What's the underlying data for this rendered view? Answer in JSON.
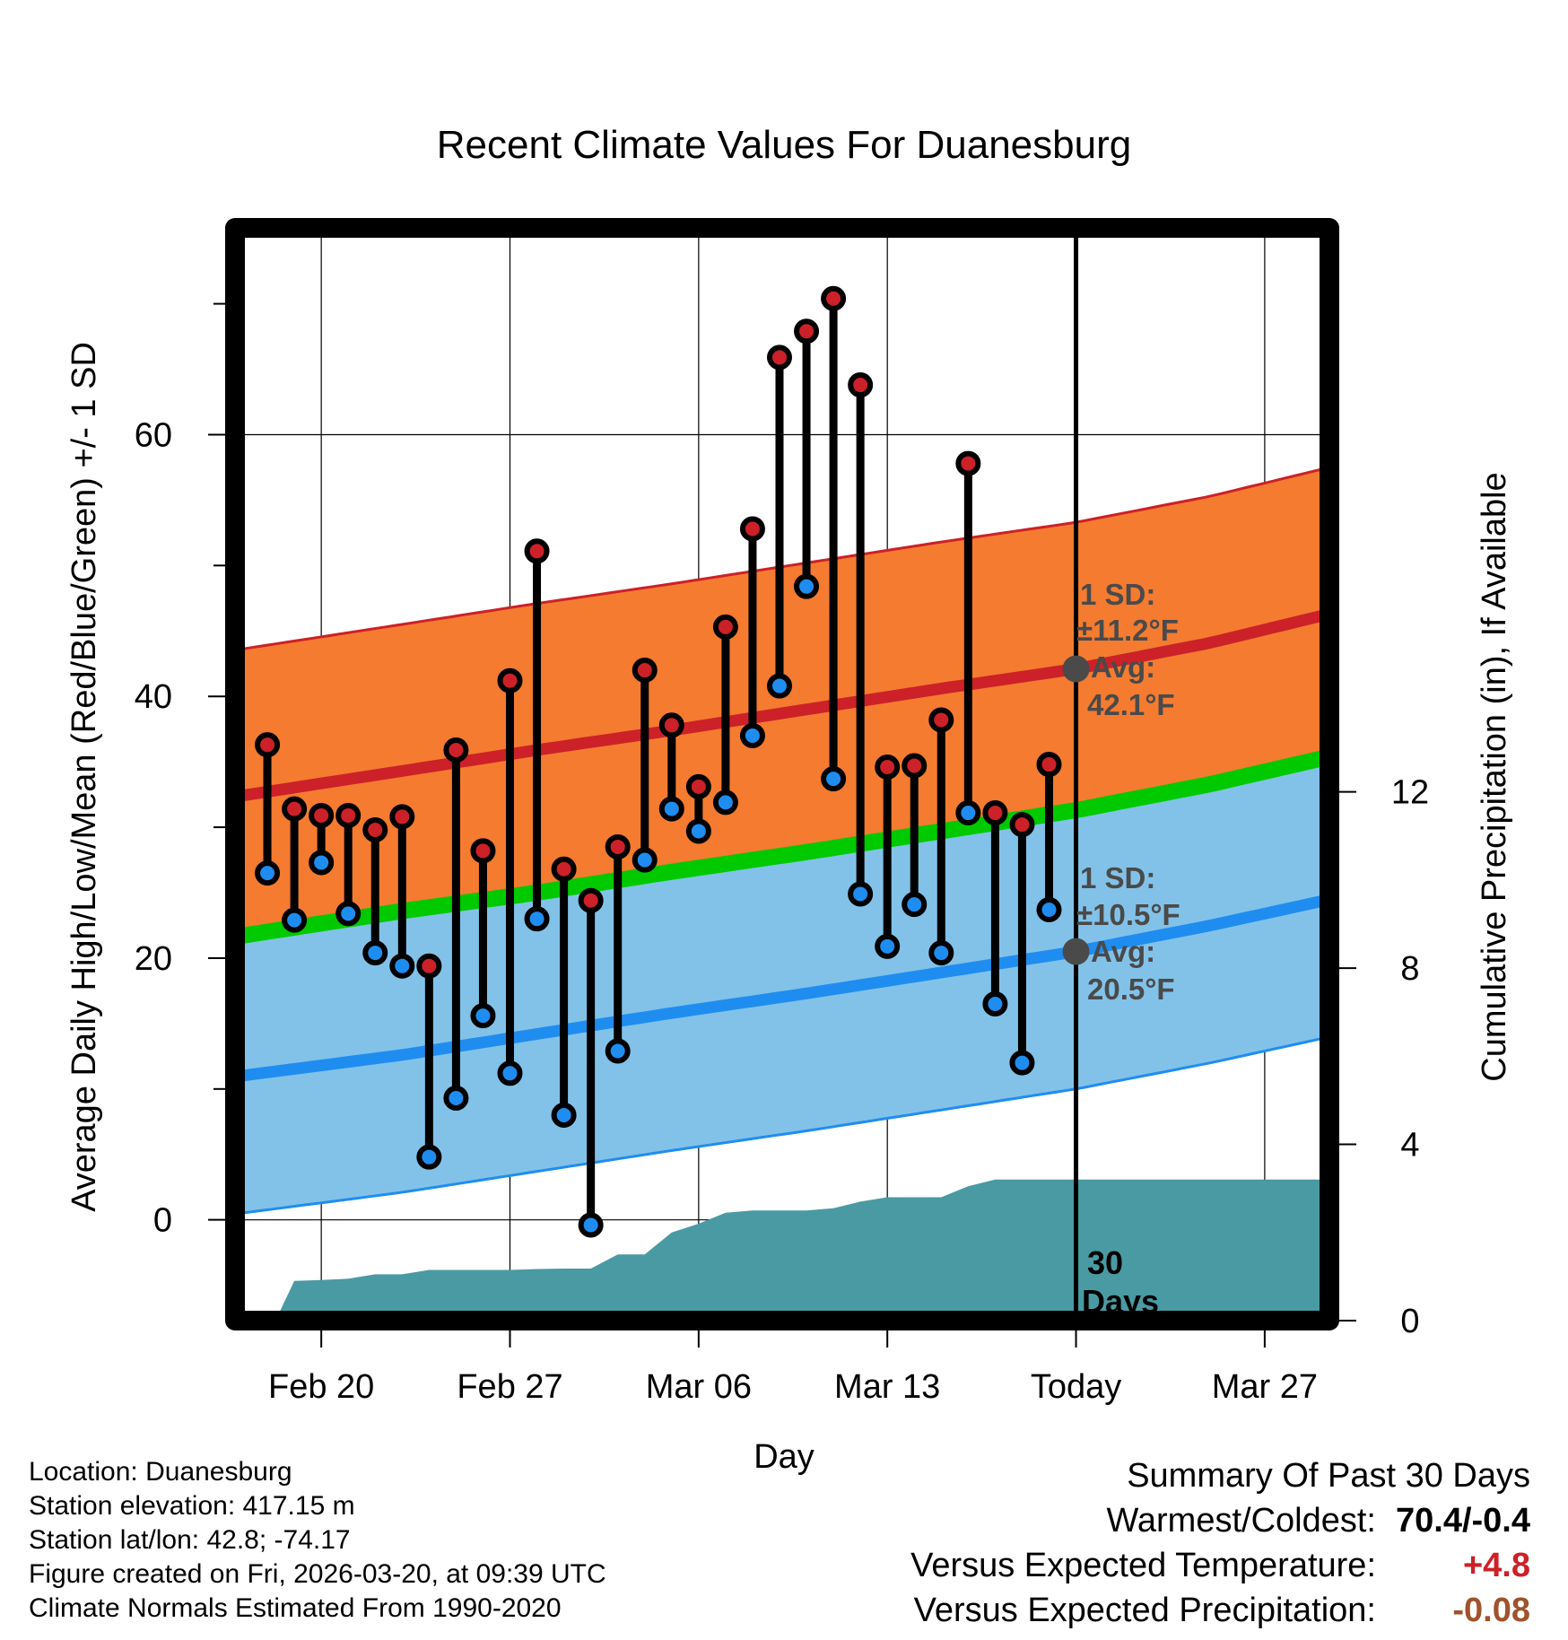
{
  "colors": {
    "high_band": "#f47b30",
    "high_line": "#cc2128",
    "low_band": "#82c2e9",
    "low_line": "#1f8df0",
    "mean_line": "#00c900",
    "precip": "#4a9aa3",
    "high_marker": "#cc2128",
    "low_marker": "#1f8df0",
    "warm_value": "#cc2128",
    "precip_value": "#a0522d",
    "annot": "#4a4a4a"
  },
  "chart_data": {
    "type": "line",
    "title": "Recent Climate Values For Duanesburg",
    "xlabel": "Day",
    "ylabel": "Average Daily High/Low/Mean (Red/Blue/Green) +/- 1 SD",
    "y2label": "Cumulative Precipitation (in), If Available",
    "x_ticks": [
      {
        "day": 2,
        "label": "Feb 20"
      },
      {
        "day": 9,
        "label": "Feb 27"
      },
      {
        "day": 16,
        "label": "Mar 06"
      },
      {
        "day": 23,
        "label": "Mar 13"
      },
      {
        "day": 30,
        "label": "Today"
      },
      {
        "day": 37,
        "label": "Mar 27"
      }
    ],
    "xlim": [
      -1.2,
      39.4
    ],
    "ylim": [
      -7.7,
      75.8
    ],
    "y_ticks": [
      0,
      20,
      40,
      60
    ],
    "y2lim": [
      0,
      24.8
    ],
    "y2_ticks": [
      0,
      4,
      8,
      12
    ],
    "today_day": 30,
    "normals": {
      "days": [
        -1,
        5,
        10,
        15,
        20,
        25,
        30,
        35,
        39
      ],
      "high_mean": [
        32.4,
        34.3,
        35.9,
        37.4,
        39.0,
        40.6,
        42.1,
        44.1,
        46.1
      ],
      "high_sd": 11.2,
      "low_mean": [
        11.0,
        12.6,
        14.2,
        15.8,
        17.3,
        18.9,
        20.5,
        22.5,
        24.3
      ],
      "low_sd": 10.5,
      "mean": [
        21.7,
        23.6,
        25.0,
        26.6,
        28.1,
        29.7,
        31.3,
        33.3,
        35.2
      ]
    },
    "observed": [
      {
        "day": 0,
        "high": 36.3,
        "low": 26.5
      },
      {
        "day": 1,
        "high": 31.4,
        "low": 22.9
      },
      {
        "day": 2,
        "high": 30.9,
        "low": 27.3
      },
      {
        "day": 3,
        "high": 30.9,
        "low": 23.4
      },
      {
        "day": 4,
        "high": 29.8,
        "low": 20.4
      },
      {
        "day": 5,
        "high": 30.8,
        "low": 19.4
      },
      {
        "day": 6,
        "high": 19.4,
        "low": 4.8
      },
      {
        "day": 7,
        "high": 35.9,
        "low": 9.3
      },
      {
        "day": 8,
        "high": 28.2,
        "low": 15.6
      },
      {
        "day": 9,
        "high": 41.2,
        "low": 11.2
      },
      {
        "day": 10,
        "high": 51.1,
        "low": 23.0
      },
      {
        "day": 11,
        "high": 26.8,
        "low": 8.0
      },
      {
        "day": 12,
        "high": 24.4,
        "low": -0.4
      },
      {
        "day": 13,
        "high": 28.5,
        "low": 12.9
      },
      {
        "day": 14,
        "high": 42.0,
        "low": 27.5
      },
      {
        "day": 15,
        "high": 37.8,
        "low": 31.4
      },
      {
        "day": 16,
        "high": 33.1,
        "low": 29.7
      },
      {
        "day": 17,
        "high": 45.3,
        "low": 31.9
      },
      {
        "day": 18,
        "high": 52.8,
        "low": 37.0
      },
      {
        "day": 19,
        "high": 65.9,
        "low": 40.8
      },
      {
        "day": 20,
        "high": 67.9,
        "low": 48.4
      },
      {
        "day": 21,
        "high": 70.4,
        "low": 33.7
      },
      {
        "day": 22,
        "high": 63.8,
        "low": 24.9
      },
      {
        "day": 23,
        "high": 34.6,
        "low": 20.9
      },
      {
        "day": 24,
        "high": 34.7,
        "low": 24.1
      },
      {
        "day": 25,
        "high": 38.2,
        "low": 20.4
      },
      {
        "day": 26,
        "high": 57.8,
        "low": 31.1
      },
      {
        "day": 27,
        "high": 31.1,
        "low": 16.5
      },
      {
        "day": 28,
        "high": 30.2,
        "low": 12.0
      },
      {
        "day": 29,
        "high": 34.8,
        "low": 23.7
      }
    ],
    "precip_cumulative": {
      "days": [
        1,
        2,
        3,
        4,
        5,
        6,
        7,
        8,
        9,
        10,
        11,
        12,
        13,
        14,
        15,
        16,
        17,
        18,
        19,
        20,
        21,
        22,
        23,
        24,
        25,
        26,
        27,
        28,
        29,
        30,
        39
      ],
      "values": [
        0.9,
        0.92,
        0.95,
        1.05,
        1.05,
        1.15,
        1.15,
        1.15,
        1.15,
        1.17,
        1.18,
        1.18,
        1.5,
        1.5,
        2.0,
        2.2,
        2.45,
        2.5,
        2.5,
        2.5,
        2.55,
        2.7,
        2.8,
        2.8,
        2.8,
        3.05,
        3.2,
        3.2,
        3.2,
        3.2,
        3.2
      ]
    }
  },
  "annotations": {
    "high_sd_label": "1 SD:",
    "high_sd_value": "±11.2°F",
    "high_avg_label": "Avg:",
    "high_avg_value": "42.1°F",
    "low_sd_label": "1 SD:",
    "low_sd_value": "±10.5°F",
    "low_avg_label": "Avg:",
    "low_avg_value": "20.5°F",
    "days_count": "30",
    "days_word": "Days"
  },
  "footer": {
    "location": "Location: Duanesburg",
    "elevation": "Station elevation: 417.15 m",
    "latlon": "Station lat/lon: 42.8; -74.17",
    "created": "Figure created on Fri, 2026-03-20, at 09:39 UTC",
    "normals": "Climate Normals Estimated From 1990-2020"
  },
  "summary": {
    "heading": "Summary Of Past 30 Days",
    "warmest_coldest_label": "Warmest/Coldest:",
    "warmest_coldest_value": "70.4/-0.4",
    "temp_label": "Versus Expected Temperature:",
    "temp_value": "+4.8",
    "precip_label": "Versus Expected Precipitation:",
    "precip_value": "-0.08"
  }
}
